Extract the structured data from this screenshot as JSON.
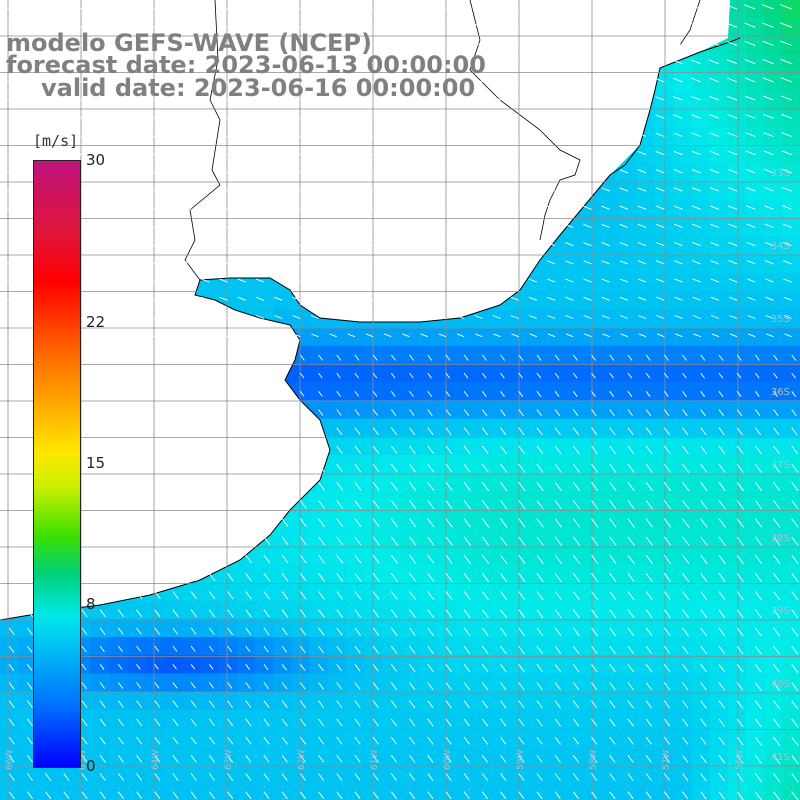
{
  "header": {
    "model": "modelo GEFS-WAVE (NCEP)",
    "forecast": "forecast date: 2023-06-13 00:00:00",
    "valid": "valid date: 2023-06-16 00:00:00"
  },
  "colorbar": {
    "units": "[m/s]",
    "ticks": [
      {
        "label": "30",
        "value": 30
      },
      {
        "label": "22",
        "value": 22
      },
      {
        "label": "15",
        "value": 15
      },
      {
        "label": "8",
        "value": 8
      },
      {
        "label": "0",
        "value": 0
      }
    ],
    "colors": [
      "#0000ff",
      "#0070ff",
      "#00c0f4",
      "#00e8e8",
      "#00d078",
      "#38e000",
      "#c8f000",
      "#ffe600",
      "#ffa800",
      "#ff6a00",
      "#ff0000",
      "#e0143a",
      "#c0147c"
    ]
  },
  "map": {
    "lat_labels": [
      "33S",
      "34S",
      "35S",
      "36S",
      "37S",
      "38S",
      "39S",
      "40S",
      "41S"
    ],
    "lon_labels": [
      "66W",
      "65W",
      "64W",
      "63W",
      "62W",
      "61W",
      "60W",
      "59W",
      "58W",
      "57W",
      "56W"
    ],
    "land_color": "#ffffff",
    "grid_color": "#8c8c8c",
    "arrow_color": "#ffffff"
  }
}
